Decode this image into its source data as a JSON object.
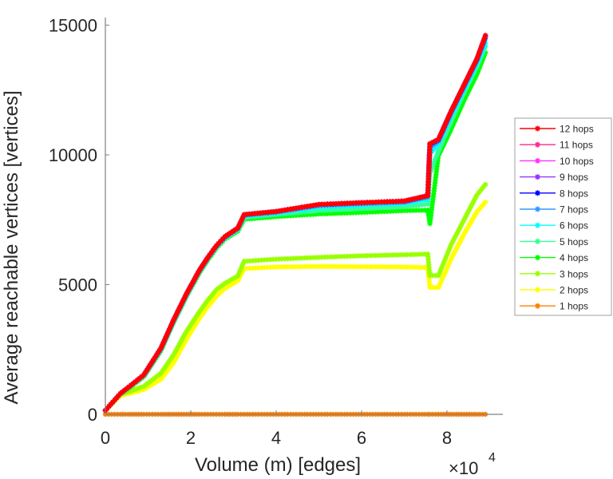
{
  "chart_data": {
    "type": "line",
    "title": "",
    "xlabel": "Volume (m) [edges]",
    "ylabel": "Average reachable vertices [vertices]",
    "x_multiplier_label": "×10",
    "x_multiplier_exponent": "4",
    "xlim": [
      0,
      9.3
    ],
    "ylim": [
      0,
      15000
    ],
    "xticks": [
      0,
      2,
      4,
      6,
      8
    ],
    "xtick_labels": [
      "0",
      "2",
      "4",
      "6",
      "8"
    ],
    "yticks": [
      0,
      5000,
      10000,
      15000
    ],
    "ytick_labels": [
      "0",
      "5000",
      "10000",
      "15000"
    ],
    "grid": false,
    "legend_position": "outside-right",
    "marker": "asterisk",
    "x": [
      0,
      0.35,
      0.6,
      0.9,
      1.3,
      1.6,
      1.9,
      2.2,
      2.4,
      2.6,
      2.8,
      3.1,
      3.25,
      4.0,
      5.0,
      6.0,
      7.0,
      7.55,
      7.6,
      7.8,
      8.1,
      8.4,
      8.7,
      8.9
    ],
    "series": [
      {
        "name": "12 hops",
        "color": "#ff0000",
        "values": [
          150,
          800,
          1120,
          1520,
          2550,
          3650,
          4650,
          5550,
          6050,
          6500,
          6850,
          7180,
          7700,
          7820,
          8090,
          8160,
          8220,
          8430,
          10430,
          10600,
          11700,
          12700,
          13700,
          14600
        ]
      },
      {
        "name": "11 hops",
        "color": "#ff2a8a",
        "values": [
          150,
          800,
          1120,
          1520,
          2550,
          3650,
          4650,
          5550,
          6050,
          6500,
          6850,
          7180,
          7700,
          7820,
          8090,
          8160,
          8220,
          8430,
          10430,
          10600,
          11700,
          12700,
          13700,
          14600
        ]
      },
      {
        "name": "10 hops",
        "color": "#ff33ff",
        "values": [
          150,
          800,
          1120,
          1520,
          2550,
          3650,
          4650,
          5550,
          6050,
          6500,
          6850,
          7180,
          7700,
          7820,
          8090,
          8160,
          8220,
          8430,
          10430,
          10600,
          11700,
          12700,
          13700,
          14600
        ]
      },
      {
        "name": "9 hops",
        "color": "#9933ff",
        "values": [
          150,
          800,
          1120,
          1520,
          2550,
          3650,
          4650,
          5550,
          6050,
          6500,
          6850,
          7180,
          7700,
          7820,
          8090,
          8160,
          8220,
          8430,
          10430,
          10600,
          11700,
          12700,
          13700,
          14600
        ]
      },
      {
        "name": "8 hops",
        "color": "#0000ff",
        "values": [
          150,
          800,
          1120,
          1520,
          2540,
          3640,
          4640,
          5540,
          6040,
          6490,
          6840,
          7170,
          7690,
          7810,
          8080,
          8150,
          8210,
          8420,
          10400,
          10580,
          11680,
          12680,
          13680,
          14560
        ]
      },
      {
        "name": "7 hops",
        "color": "#3399ff",
        "values": [
          150,
          800,
          1110,
          1510,
          2530,
          3630,
          4630,
          5530,
          6030,
          6480,
          6830,
          7160,
          7680,
          7800,
          8050,
          8120,
          8180,
          8380,
          10300,
          10520,
          11620,
          12620,
          13620,
          14480
        ]
      },
      {
        "name": "6 hops",
        "color": "#00ffff",
        "values": [
          150,
          790,
          1100,
          1500,
          2510,
          3610,
          4610,
          5510,
          6010,
          6460,
          6810,
          7140,
          7640,
          7760,
          7980,
          8060,
          8130,
          8300,
          10050,
          10420,
          11520,
          12520,
          13520,
          14300
        ]
      },
      {
        "name": "5 hops",
        "color": "#33ff99",
        "values": [
          150,
          790,
          1090,
          1480,
          2490,
          3590,
          4590,
          5490,
          5990,
          6440,
          6790,
          7110,
          7590,
          7700,
          7850,
          7930,
          8010,
          8100,
          9300,
          10150,
          11300,
          12400,
          13400,
          14180
        ]
      },
      {
        "name": "4 hops",
        "color": "#00ff00",
        "values": [
          150,
          780,
          1070,
          1450,
          2450,
          3550,
          4550,
          5450,
          5950,
          6400,
          6750,
          7060,
          7520,
          7620,
          7720,
          7780,
          7850,
          7870,
          7350,
          9970,
          11000,
          12100,
          13100,
          13940
        ]
      },
      {
        "name": "3 hops",
        "color": "#99ff00",
        "values": [
          150,
          780,
          900,
          1080,
          1580,
          2300,
          3200,
          3950,
          4400,
          4800,
          5050,
          5330,
          5900,
          5980,
          6050,
          6110,
          6150,
          6180,
          5350,
          5350,
          6550,
          7500,
          8450,
          8860
        ]
      },
      {
        "name": "2 hops",
        "color": "#ffff00",
        "values": [
          150,
          720,
          820,
          960,
          1350,
          2000,
          2900,
          3700,
          4150,
          4550,
          4850,
          5150,
          5620,
          5680,
          5700,
          5690,
          5680,
          5660,
          4890,
          4890,
          6000,
          6950,
          7800,
          8180
        ]
      },
      {
        "name": "1 hops",
        "color": "#ff8000",
        "values": [
          2,
          2,
          2,
          2,
          2,
          2,
          2,
          2,
          2,
          2,
          2,
          2,
          2,
          2,
          2,
          2,
          2,
          2,
          2,
          2,
          2,
          2,
          2,
          2
        ]
      }
    ]
  }
}
